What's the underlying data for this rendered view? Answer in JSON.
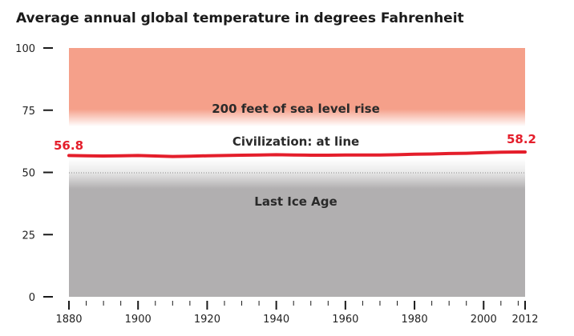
{
  "chart_data": {
    "type": "line",
    "title": "Average annual global temperature in degrees Fahrenheit",
    "xlabel": "",
    "ylabel": "",
    "xlim": [
      1880,
      2012
    ],
    "ylim": [
      0,
      100
    ],
    "x_ticks": [
      1880,
      1900,
      1920,
      1940,
      1960,
      1980,
      2000,
      2012
    ],
    "y_ticks": [
      0,
      25,
      50,
      75,
      100
    ],
    "grid": false,
    "reference_line": 50,
    "bands": [
      {
        "label": "200 feet of sea level rise",
        "from": 70,
        "to": 100,
        "color": "#f5a08a"
      },
      {
        "label": "Civilization: at line",
        "from": 50,
        "to": 70,
        "color": "#ffffff"
      },
      {
        "label": "Last Ice Age",
        "from": 0,
        "to": 50,
        "color": "#b1afb0"
      }
    ],
    "series": [
      {
        "color": "#e41e2b",
        "x": [
          1880,
          1885,
          1890,
          1895,
          1900,
          1905,
          1910,
          1915,
          1920,
          1925,
          1930,
          1935,
          1940,
          1945,
          1950,
          1955,
          1960,
          1965,
          1970,
          1975,
          1980,
          1985,
          1990,
          1995,
          2000,
          2005,
          2010,
          2012
        ],
        "y": [
          56.8,
          56.7,
          56.6,
          56.7,
          56.8,
          56.6,
          56.4,
          56.5,
          56.7,
          56.8,
          56.9,
          57.0,
          57.1,
          57.0,
          56.9,
          56.9,
          57.0,
          57.0,
          57.0,
          57.1,
          57.3,
          57.4,
          57.6,
          57.7,
          57.9,
          58.1,
          58.2,
          58.2
        ]
      }
    ],
    "annotations": [
      {
        "text": "56.8",
        "x": 1880,
        "y": 56.8,
        "color": "#e41e2b"
      },
      {
        "text": "58.2",
        "x": 2012,
        "y": 58.2,
        "color": "#e41e2b"
      }
    ]
  }
}
